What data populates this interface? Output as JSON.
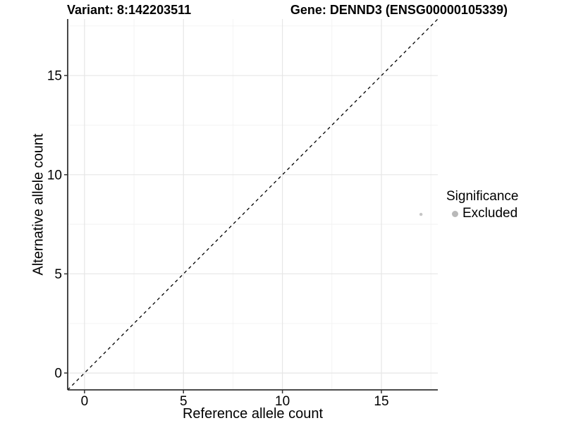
{
  "header": {
    "variant_title": "Variant: 8:142203511",
    "gene_title": "Gene: DENND3 (ENSG00000105339)"
  },
  "legend": {
    "title": "Significance",
    "items": [
      {
        "label": "Excluded",
        "color": "#b9b9b9"
      }
    ]
  },
  "colors": {
    "grid_major": "#e6e6e6",
    "grid_minor": "#f2f2f2",
    "axis": "#333333",
    "reference_line": "#000000",
    "point": "#c6c6c6",
    "text": "#000000"
  },
  "chart_data": {
    "type": "scatter",
    "title_left": "Variant: 8:142203511",
    "title_right": "Gene: DENND3 (ENSG00000105339)",
    "xlabel": "Reference allele count",
    "ylabel": "Alternative allele count",
    "xlim": [
      -0.85,
      17.85
    ],
    "ylim": [
      -0.85,
      17.85
    ],
    "x_ticks": [
      0,
      5,
      10,
      15
    ],
    "y_ticks": [
      0,
      5,
      10,
      15
    ],
    "x_minor_ticks": [
      2.5,
      7.5,
      12.5,
      17.5
    ],
    "y_minor_ticks": [
      2.5,
      7.5,
      12.5,
      17.5
    ],
    "grid": true,
    "legend_position": "right",
    "legend_title": "Significance",
    "series": [
      {
        "name": "Excluded",
        "points": [
          {
            "x": 17,
            "y": 8
          }
        ]
      }
    ],
    "reference_line": {
      "type": "identity",
      "slope": 1,
      "intercept": 0,
      "style": "dashed"
    }
  }
}
